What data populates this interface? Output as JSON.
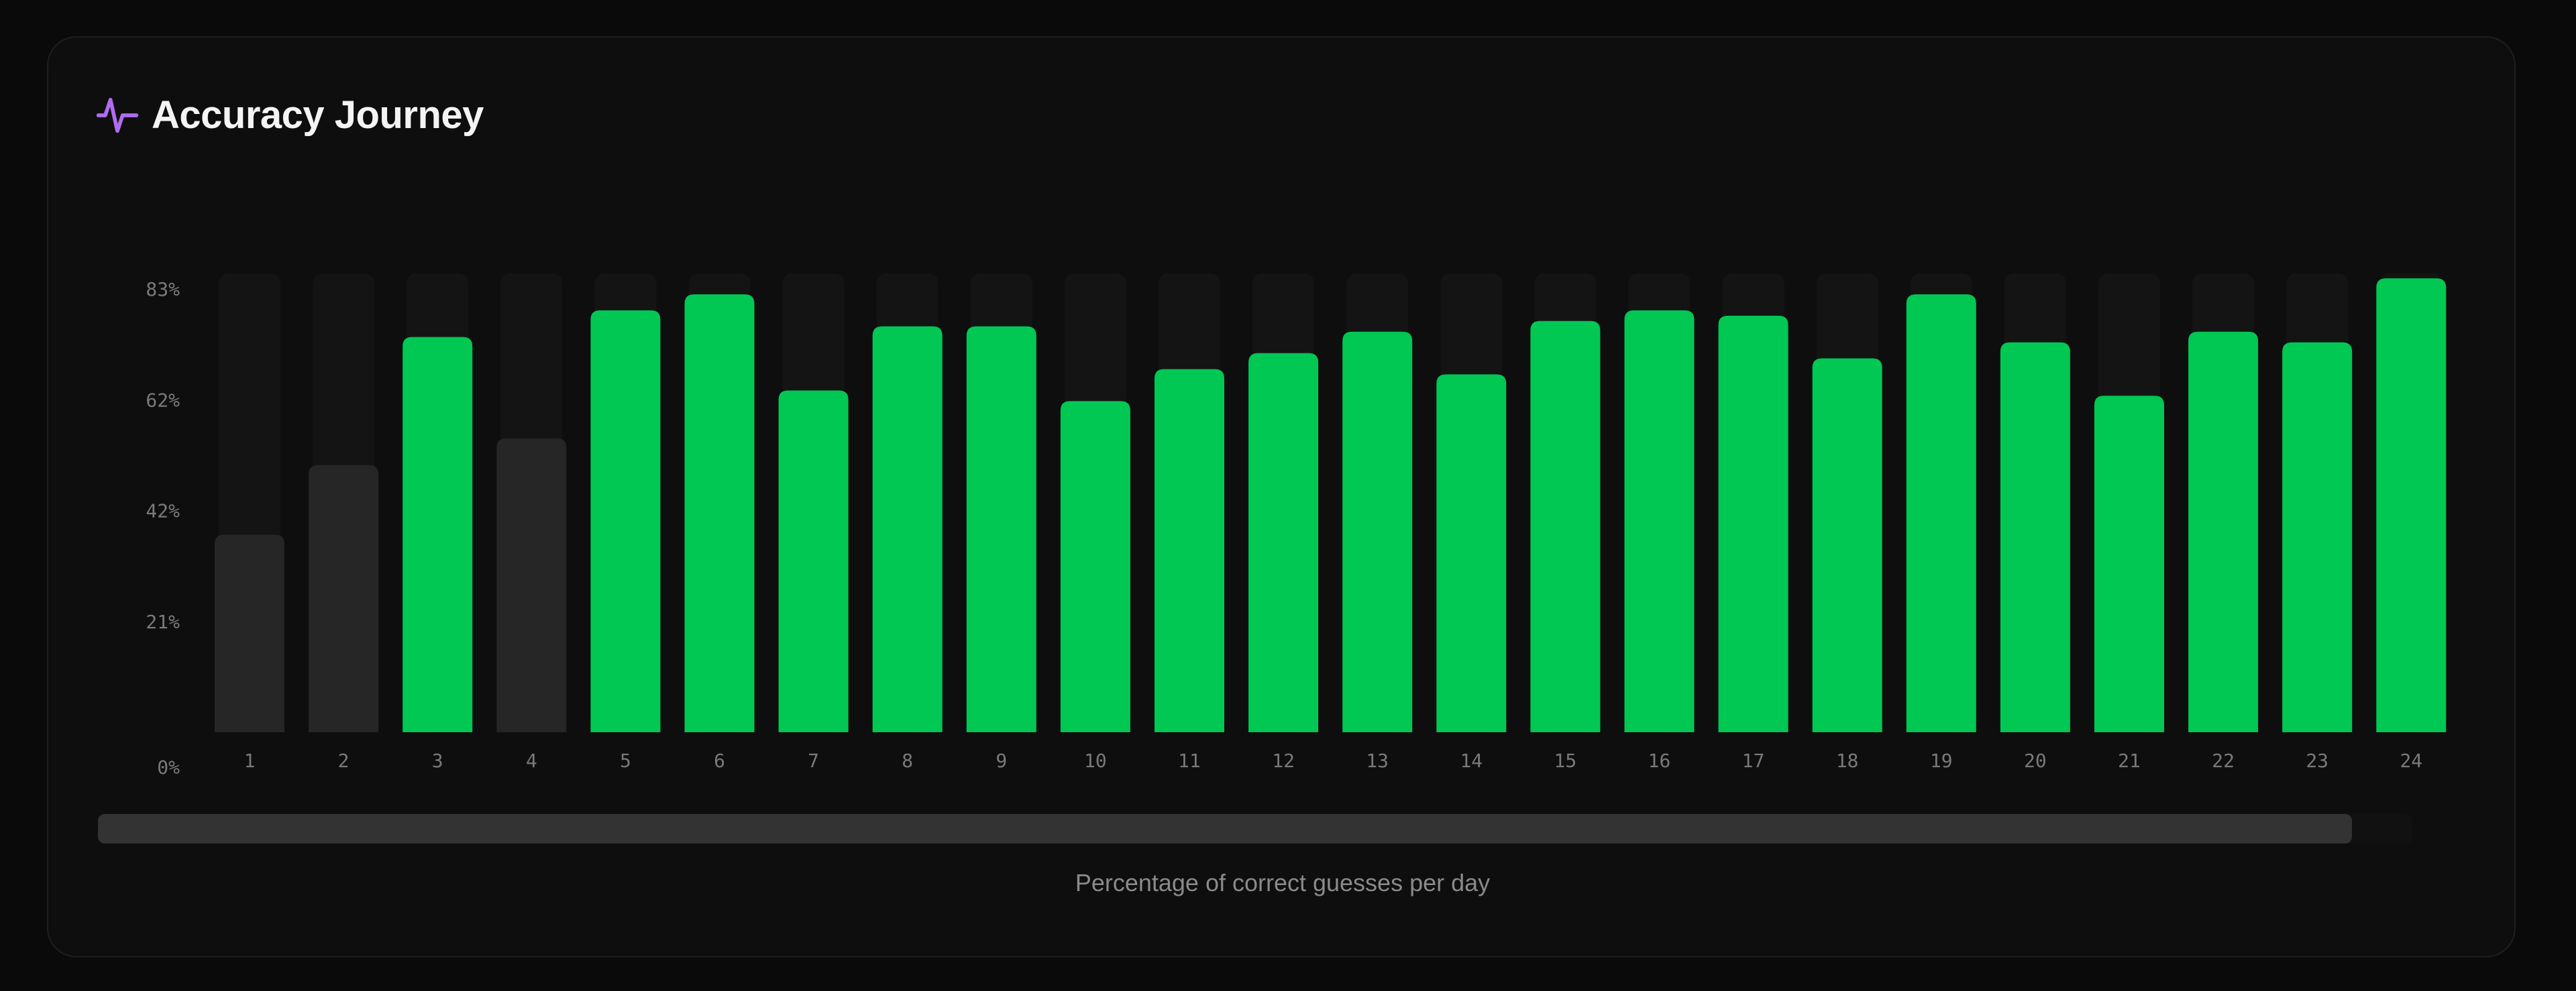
{
  "header": {
    "title": "Accuracy Journey",
    "icon": "activity-pulse-icon",
    "icon_color": "#b06cf0"
  },
  "caption": "Percentage of correct guesses per day",
  "scrollbar": {
    "visible_fraction": 0.974
  },
  "colors": {
    "bar_high": "#00c853",
    "bar_low": "#262626",
    "bar_track": "#141414"
  },
  "chart_data": {
    "type": "bar",
    "categories": [
      "1",
      "2",
      "3",
      "4",
      "5",
      "6",
      "7",
      "8",
      "9",
      "10",
      "11",
      "12",
      "13",
      "14",
      "15",
      "16",
      "17",
      "18",
      "19",
      "20",
      "21",
      "22",
      "23",
      "24"
    ],
    "values": [
      37,
      50,
      74,
      55,
      79,
      82,
      64,
      76,
      76,
      62,
      68,
      71,
      75,
      67,
      77,
      79,
      78,
      70,
      82,
      73,
      63,
      75,
      73,
      85
    ],
    "highlighted": [
      false,
      false,
      true,
      false,
      true,
      true,
      true,
      true,
      true,
      true,
      true,
      true,
      true,
      true,
      true,
      true,
      true,
      true,
      true,
      true,
      true,
      true,
      true,
      true
    ],
    "y_ticks": [
      "0%",
      "21%",
      "42%",
      "62%",
      "83%"
    ],
    "ylim": [
      0,
      83
    ],
    "title": "",
    "xlabel": "",
    "ylabel": "",
    "grid": false,
    "legend": "none"
  }
}
